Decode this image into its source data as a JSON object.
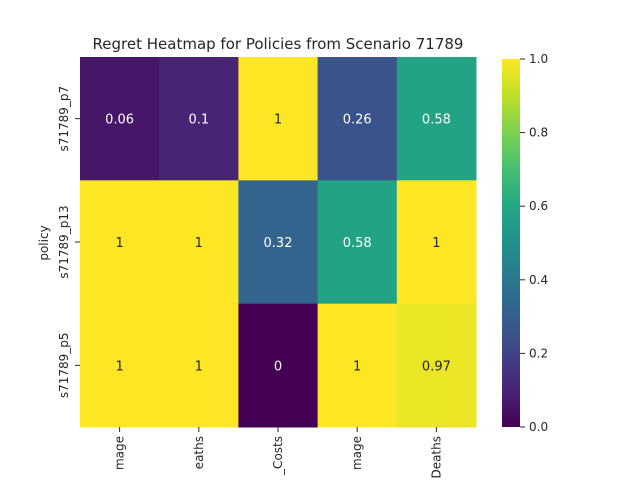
{
  "chart_data": {
    "type": "heatmap",
    "title": "Regret Heatmap for Policies from Scenario 71789",
    "ylabel": "policy",
    "xlabel": "",
    "rows": [
      "s71789_p7",
      "s71789_p13",
      "s71789_p5"
    ],
    "columns": [
      "mage",
      "eaths",
      "_Costs",
      "mage",
      "Deaths"
    ],
    "values": [
      [
        0.06,
        0.1,
        1,
        0.26,
        0.58
      ],
      [
        1,
        1,
        0.32,
        0.58,
        1
      ],
      [
        1,
        1,
        0,
        1,
        0.97
      ]
    ],
    "cell_labels": [
      [
        "0.06",
        "0.1",
        "1",
        "0.26",
        "0.58"
      ],
      [
        "1",
        "1",
        "0.32",
        "0.58",
        "1"
      ],
      [
        "1",
        "1",
        "0",
        "1",
        "0.97"
      ]
    ],
    "colormap": "viridis",
    "vmin": 0,
    "vmax": 1,
    "colorbar_ticks": [
      "0.0",
      "0.2",
      "0.4",
      "0.6",
      "0.8",
      "1.0"
    ],
    "colorbar_tick_values": [
      0,
      0.2,
      0.4,
      0.6,
      0.8,
      1.0
    ],
    "grid": false
  }
}
